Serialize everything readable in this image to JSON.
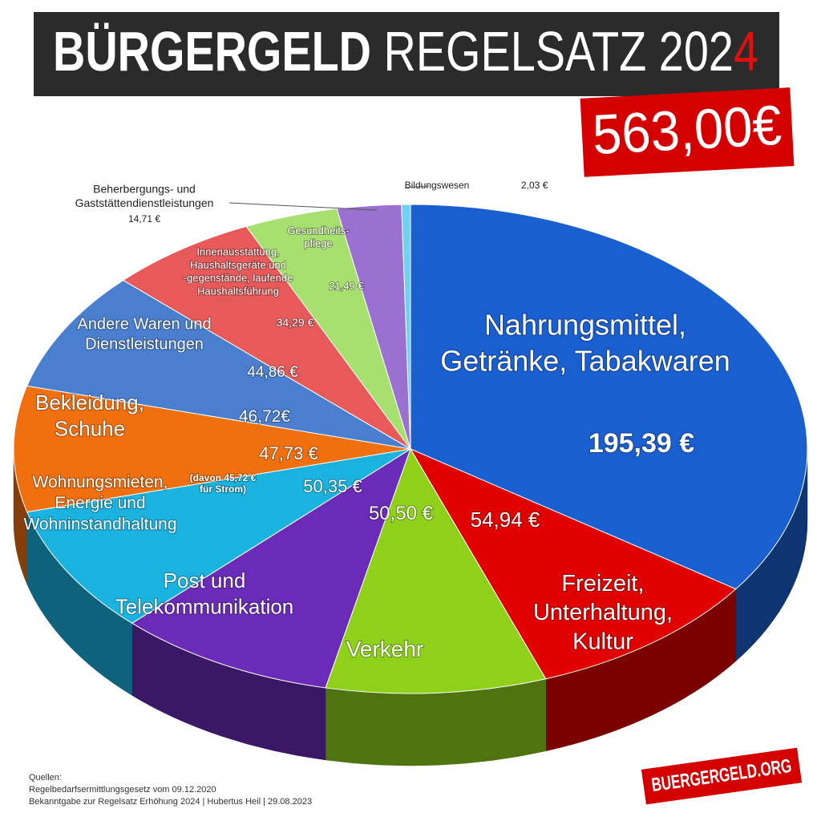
{
  "chart_data": {
    "type": "pie3d",
    "title": "BÜRGERGELD REGELSATZ 2024",
    "total": 563.0,
    "total_label": "563,00€",
    "categories": [
      "Nahrungsmittel,\nGetränke, Tabakwaren",
      "Freizeit,\nUnterhaltung,\nKultur",
      "Verkehr",
      "Post und\nTelekommunikation",
      "Wohnungsmieten,\nEnergie und\nWohninstandhaltung",
      "Bekleidung,\nSchuhe",
      "Andere Waren und\nDienstleistungen",
      "Innenausstattung,\nHaushaltsgeräte und\n-gegenstände, laufende\nHaushaltsführung",
      "Gesundheits-\npflege",
      "Beherbergungs- und\nGaststättendienstleistungen",
      "Bildungswesen"
    ],
    "values": [
      195.39,
      54.94,
      50.5,
      50.35,
      47.73,
      46.72,
      44.86,
      34.29,
      21.49,
      14.71,
      2.03
    ],
    "value_labels": [
      "195,39 €",
      "54,94 €",
      "50,50 €",
      "50,35 €",
      "47,73 €",
      "46,72€",
      "44,86 €",
      "34,29 €",
      "21,49 €",
      "14,71 €",
      "2,03 €"
    ],
    "colors": [
      "#1a5fd0",
      "#e00000",
      "#8fd11a",
      "#6a2cb8",
      "#1ab3e0",
      "#f07010",
      "#4a7fd0",
      "#e85a5a",
      "#a8e070",
      "#9a70d0",
      "#6fd0f0"
    ],
    "annotation": "(davon 45,72 €\nfür Strom)",
    "sources": [
      "Quellen:",
      "Regelbedarfsermittlungsgesetz vom 09.12.2020",
      "Bekanntgabe zur Regelsatz Erhöhung 2024 | Hubertus Heil | 29.08.2023"
    ],
    "logo": "BUERGERGELD.ORG"
  }
}
